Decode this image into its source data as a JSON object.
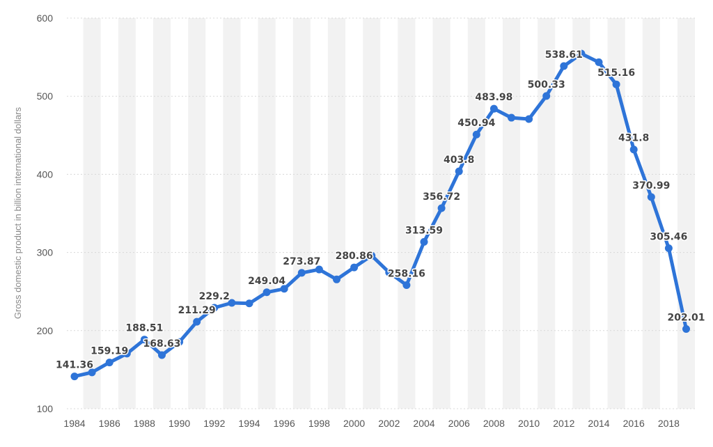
{
  "chart_data": {
    "type": "line",
    "title": "",
    "xlabel": "",
    "ylabel": "Gross domestic product in billion international dollars",
    "ylim": [
      100,
      600
    ],
    "yticks": [
      "100",
      "200",
      "300",
      "400",
      "500",
      "600"
    ],
    "x_ticks": [
      "1984",
      "1986",
      "1988",
      "1990",
      "1992",
      "1994",
      "1996",
      "1998",
      "2000",
      "2002",
      "2004",
      "2006",
      "2008",
      "2010",
      "2012",
      "2014",
      "2016",
      "2018"
    ],
    "grid": true,
    "legend": "none",
    "color": "#2e74d8",
    "x": [
      1984,
      1985,
      1986,
      1987,
      1988,
      1989,
      1990,
      1991,
      1992,
      1993,
      1994,
      1995,
      1996,
      1997,
      1998,
      1999,
      2000,
      2001,
      2002,
      2003,
      2004,
      2005,
      2006,
      2007,
      2008,
      2009,
      2010,
      2011,
      2012,
      2013,
      2014,
      2015,
      2016,
      2017,
      2018,
      2019
    ],
    "values": [
      141.36,
      146.5,
      159.19,
      170.5,
      188.51,
      168.63,
      185.5,
      211.29,
      229.2,
      235.5,
      234.8,
      249.04,
      253.5,
      273.87,
      278.2,
      265.5,
      280.86,
      296.0,
      274.5,
      258.16,
      313.59,
      356.72,
      403.8,
      450.94,
      483.98,
      472.5,
      470.8,
      500.33,
      538.61,
      554.5,
      543.5,
      515.16,
      431.8,
      370.99,
      305.46,
      202.01
    ],
    "data_labels": [
      {
        "year": 1984,
        "text": "141.36"
      },
      {
        "year": 1986,
        "text": "159.19"
      },
      {
        "year": 1988,
        "text": "188.51"
      },
      {
        "year": 1989,
        "text": "168.63"
      },
      {
        "year": 1991,
        "text": "211.29"
      },
      {
        "year": 1992,
        "text": "229.2"
      },
      {
        "year": 1995,
        "text": "249.04"
      },
      {
        "year": 1997,
        "text": "273.87"
      },
      {
        "year": 2000,
        "text": "280.86"
      },
      {
        "year": 2003,
        "text": "258.16"
      },
      {
        "year": 2004,
        "text": "313.59"
      },
      {
        "year": 2005,
        "text": "356.72"
      },
      {
        "year": 2006,
        "text": "403.8"
      },
      {
        "year": 2007,
        "text": "450.94"
      },
      {
        "year": 2008,
        "text": "483.98"
      },
      {
        "year": 2011,
        "text": "500.33"
      },
      {
        "year": 2012,
        "text": "538.61"
      },
      {
        "year": 2015,
        "text": "515.16"
      },
      {
        "year": 2016,
        "text": "431.8"
      },
      {
        "year": 2017,
        "text": "370.99"
      },
      {
        "year": 2018,
        "text": "305.46"
      },
      {
        "year": 2019,
        "text": "202.01"
      }
    ]
  }
}
